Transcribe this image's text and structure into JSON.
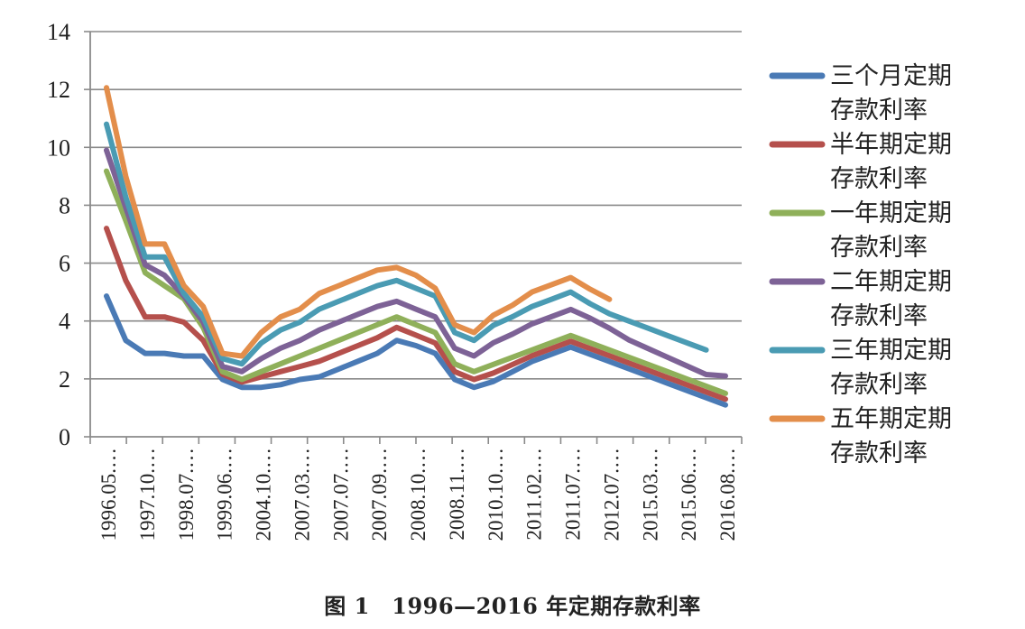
{
  "caption": "图 1　1996—2016 年定期存款利率",
  "chart_data": {
    "type": "line",
    "categories": [
      "1996.05.…",
      "",
      "1997.10.…",
      "",
      "1998.07.…",
      "",
      "1999.06.…",
      "",
      "2004.10.…",
      "",
      "2007.03.…",
      "",
      "2007.07.…",
      "",
      "2007.09.…",
      "",
      "2008.10.…",
      "",
      "2008.11.…",
      "",
      "2010.10.…",
      "",
      "2011.02.…",
      "",
      "2011.07.…",
      "",
      "2012.07.…",
      "",
      "2015.03.…",
      "",
      "2015.06.…",
      "",
      "2016.08.…"
    ],
    "ylim": [
      0,
      14
    ],
    "yticks": [
      0,
      2,
      4,
      6,
      8,
      10,
      12,
      14
    ],
    "grid": true,
    "legend_position": "right",
    "series": [
      {
        "name": "三个月定期存款利率",
        "color": "#4a7ab5",
        "values": [
          4.86,
          3.33,
          2.88,
          2.88,
          2.79,
          2.79,
          1.98,
          1.71,
          1.71,
          1.8,
          1.98,
          2.07,
          2.34,
          2.61,
          2.88,
          3.33,
          3.15,
          2.88,
          1.98,
          1.71,
          1.91,
          2.25,
          2.6,
          2.85,
          3.1,
          2.85,
          2.6,
          2.35,
          2.1,
          1.85,
          1.6,
          1.35,
          1.1
        ]
      },
      {
        "name": "半年期定期存款利率",
        "color": "#b5504c",
        "values": [
          7.2,
          5.4,
          4.14,
          4.14,
          3.96,
          3.33,
          2.16,
          1.89,
          2.07,
          2.25,
          2.43,
          2.61,
          2.88,
          3.15,
          3.42,
          3.78,
          3.51,
          3.24,
          2.25,
          1.98,
          2.2,
          2.5,
          2.8,
          3.05,
          3.3,
          3.05,
          2.8,
          2.55,
          2.3,
          2.05,
          1.8,
          1.55,
          1.3
        ]
      },
      {
        "name": "一年期定期存款利率",
        "color": "#8fb05a",
        "values": [
          9.18,
          7.47,
          5.67,
          5.22,
          4.77,
          3.78,
          2.25,
          1.98,
          2.25,
          2.52,
          2.79,
          3.06,
          3.33,
          3.6,
          3.87,
          4.14,
          3.87,
          3.6,
          2.52,
          2.25,
          2.5,
          2.75,
          3.0,
          3.25,
          3.5,
          3.25,
          3.0,
          2.75,
          2.5,
          2.25,
          2.0,
          1.75,
          1.5
        ]
      },
      {
        "name": "二年期定期存款利率",
        "color": "#7d6296",
        "values": [
          9.9,
          7.92,
          5.94,
          5.58,
          4.86,
          3.96,
          2.43,
          2.25,
          2.7,
          3.06,
          3.33,
          3.69,
          3.96,
          4.23,
          4.5,
          4.68,
          4.41,
          4.14,
          3.06,
          2.79,
          3.25,
          3.55,
          3.9,
          4.15,
          4.4,
          4.1,
          3.75,
          3.35,
          3.05,
          2.75,
          2.45,
          2.15,
          2.1
        ]
      },
      {
        "name": "三年期定期存款利率",
        "color": "#4a9bb3",
        "values": [
          10.8,
          8.28,
          6.21,
          6.21,
          4.95,
          4.14,
          2.7,
          2.52,
          3.24,
          3.69,
          3.96,
          4.41,
          4.68,
          4.95,
          5.22,
          5.4,
          5.13,
          4.86,
          3.6,
          3.33,
          3.85,
          4.15,
          4.5,
          4.75,
          5.0,
          4.6,
          4.25,
          4.0,
          3.75,
          3.5,
          3.25,
          3.0,
          null
        ]
      },
      {
        "name": "五年期定期存款利率",
        "color": "#e38e4b",
        "values": [
          12.06,
          9.0,
          6.66,
          6.66,
          5.22,
          4.5,
          2.88,
          2.79,
          3.6,
          4.14,
          4.41,
          4.95,
          5.22,
          5.49,
          5.76,
          5.85,
          5.58,
          5.13,
          3.87,
          3.6,
          4.2,
          4.55,
          5.0,
          5.25,
          5.5,
          5.1,
          4.75,
          null,
          null,
          null,
          null,
          null,
          null
        ]
      }
    ]
  },
  "icons": {
    "legend_swatch": "line-swatch"
  }
}
